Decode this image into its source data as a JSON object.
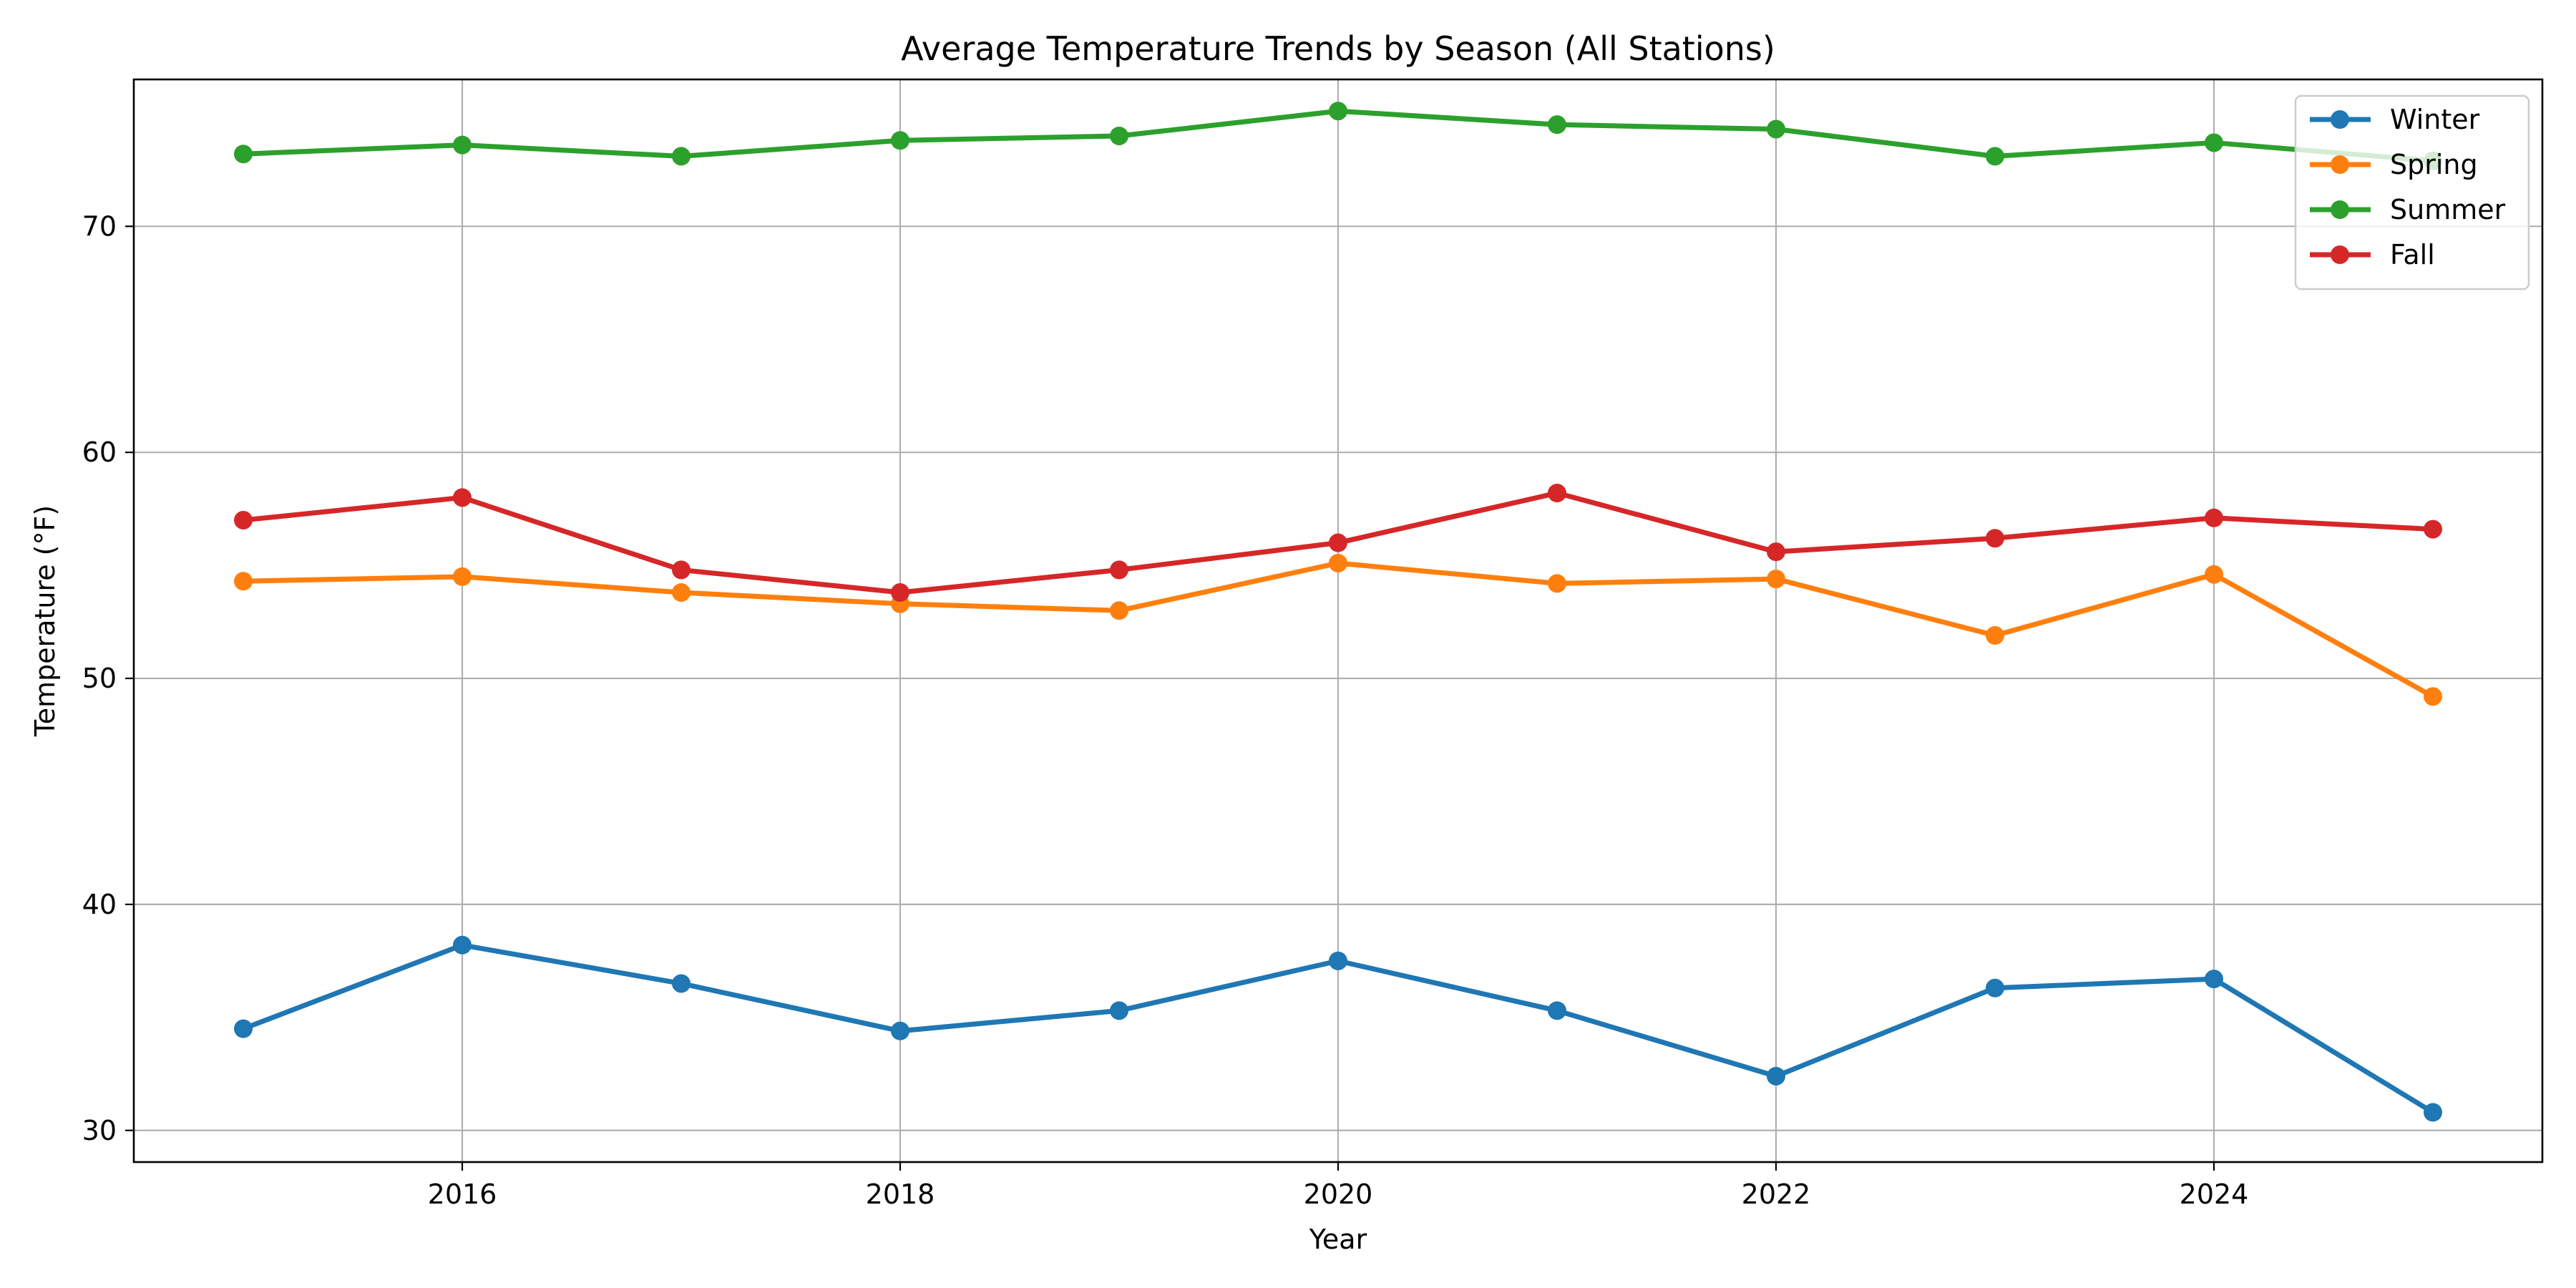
{
  "chart_data": {
    "type": "line",
    "title": "Average Temperature Trends by Season (All Stations)",
    "xlabel": "Year",
    "ylabel": "Temperature (°F)",
    "x": [
      2015,
      2016,
      2017,
      2018,
      2019,
      2020,
      2021,
      2022,
      2023,
      2024,
      2025
    ],
    "xlim": [
      2014.5,
      2025.5
    ],
    "ylim": [
      28.6,
      76.5
    ],
    "xticks": [
      2016,
      2018,
      2020,
      2022,
      2024
    ],
    "yticks": [
      30,
      40,
      50,
      60,
      70
    ],
    "grid": true,
    "legend_position": "top-right",
    "series": [
      {
        "name": "Winter",
        "color": "#1f77b4",
        "values": [
          34.5,
          38.2,
          36.5,
          34.4,
          35.3,
          37.5,
          35.3,
          32.4,
          36.3,
          36.7,
          30.8
        ]
      },
      {
        "name": "Spring",
        "color": "#ff7f0e",
        "values": [
          54.3,
          54.5,
          53.8,
          53.3,
          53.0,
          55.1,
          54.2,
          54.4,
          51.9,
          54.6,
          49.2
        ]
      },
      {
        "name": "Summer",
        "color": "#2ca02c",
        "values": [
          73.2,
          73.6,
          73.1,
          73.8,
          74.0,
          75.1,
          74.5,
          74.3,
          73.1,
          73.7,
          72.9
        ]
      },
      {
        "name": "Fall",
        "color": "#d62728",
        "values": [
          57.0,
          58.0,
          54.8,
          53.8,
          54.8,
          56.0,
          58.2,
          55.6,
          56.2,
          57.1,
          56.6
        ]
      }
    ]
  }
}
